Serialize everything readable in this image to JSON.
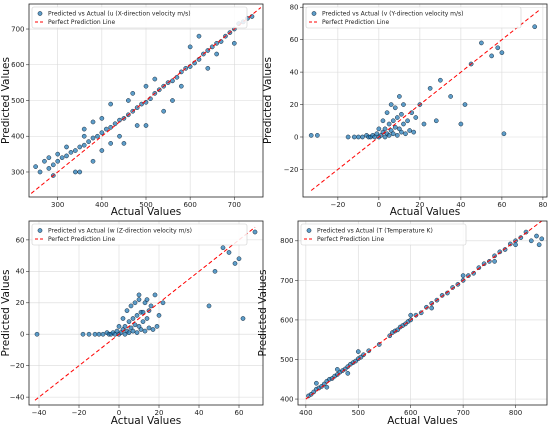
{
  "chart_data": [
    {
      "type": "scatter",
      "xlabel": "Actual Values",
      "ylabel": "Predicted Values",
      "xlim": [
        235,
        765
      ],
      "ylim": [
        230,
        770
      ],
      "xticks": [
        300,
        400,
        500,
        600,
        700
      ],
      "yticks": [
        300,
        400,
        500,
        600,
        700
      ],
      "grid": true,
      "legend_position": "top-left",
      "series": [
        {
          "name": "Predicted vs Actual (u (X-direction velocity m/s)",
          "color": "#1f77b4",
          "x": [
            280,
            290,
            300,
            310,
            320,
            330,
            340,
            350,
            360,
            370,
            380,
            390,
            400,
            410,
            420,
            430,
            440,
            450,
            460,
            470,
            480,
            490,
            500,
            510,
            520,
            530,
            540,
            550,
            560,
            570,
            580,
            590,
            600,
            610,
            620,
            630,
            640,
            650,
            660,
            670,
            680,
            690,
            700,
            710,
            720,
            730,
            740,
            250,
            260,
            270,
            280,
            290,
            350,
            360,
            380,
            400,
            420,
            450,
            470,
            500,
            520,
            560,
            600,
            640,
            700,
            300,
            320,
            340,
            360,
            380,
            400,
            420,
            440,
            460,
            480,
            500,
            540,
            580,
            620,
            660
          ],
          "y": [
            310,
            320,
            330,
            340,
            345,
            355,
            360,
            370,
            375,
            385,
            395,
            400,
            410,
            420,
            425,
            435,
            445,
            450,
            460,
            470,
            480,
            490,
            495,
            505,
            520,
            530,
            540,
            550,
            555,
            565,
            580,
            590,
            595,
            605,
            615,
            630,
            640,
            650,
            660,
            665,
            680,
            690,
            700,
            715,
            720,
            730,
            735,
            315,
            300,
            330,
            340,
            290,
            300,
            420,
            330,
            360,
            490,
            380,
            520,
            430,
            560,
            500,
            650,
            590,
            660,
            350,
            370,
            300,
            400,
            440,
            450,
            380,
            400,
            500,
            430,
            540,
            470,
            540,
            680,
            630
          ]
        }
      ],
      "reference_line": {
        "name": "Perfect Prediction Line",
        "color": "#ff0000",
        "from": [
          240,
          240
        ],
        "to": [
          760,
          760
        ]
      }
    },
    {
      "type": "scatter",
      "xlabel": "Actual Values",
      "ylabel": "Predicted Values",
      "xlim": [
        -37,
        82
      ],
      "ylim": [
        -37,
        82
      ],
      "xticks": [
        -20,
        0,
        20,
        40,
        60,
        80
      ],
      "yticks": [
        -20,
        0,
        20,
        40,
        60,
        80
      ],
      "grid": true,
      "legend_position": "top-left",
      "series": [
        {
          "name": "Predicted vs Actual (v (Y-direction velocity m/s)",
          "color": "#1f77b4",
          "x": [
            -33,
            -30,
            -15,
            -12,
            -10,
            -8,
            -6,
            -5,
            -4,
            -3,
            -2,
            -1,
            0,
            1,
            2,
            3,
            4,
            5,
            6,
            7,
            8,
            9,
            10,
            11,
            12,
            14,
            16,
            18,
            20,
            22,
            25,
            28,
            30,
            0,
            2,
            4,
            6,
            8,
            10,
            12,
            3,
            5,
            7,
            9,
            11,
            13,
            15,
            17,
            35,
            40,
            42,
            45,
            50,
            55,
            58,
            60,
            61,
            76
          ],
          "y": [
            1,
            1,
            0,
            0,
            0,
            0,
            1,
            0,
            0,
            1,
            0,
            2,
            0,
            1,
            3,
            5,
            2,
            8,
            4,
            10,
            6,
            12,
            5,
            14,
            8,
            10,
            15,
            12,
            20,
            8,
            30,
            10,
            35,
            5,
            10,
            15,
            20,
            18,
            25,
            20,
            0,
            1,
            2,
            1,
            3,
            2,
            4,
            3,
            25,
            8,
            20,
            45,
            58,
            50,
            55,
            52,
            2,
            68
          ]
        }
      ],
      "reference_line": {
        "name": "Perfect Prediction Line",
        "color": "#ff0000",
        "from": [
          -33,
          -33
        ],
        "to": [
          78,
          78
        ]
      }
    },
    {
      "type": "scatter",
      "xlabel": "Actual Values",
      "ylabel": "Predicted Values",
      "xlim": [
        -45,
        72
      ],
      "ylim": [
        -45,
        72
      ],
      "xticks": [
        -40,
        -20,
        0,
        20,
        40,
        60
      ],
      "yticks": [
        -40,
        -20,
        0,
        20,
        40,
        60
      ],
      "grid": true,
      "legend_position": "top-left",
      "series": [
        {
          "name": "Predicted vs Actual (w (Z-direction velocity m/s)",
          "color": "#1f77b4",
          "x": [
            -41,
            -18,
            -15,
            -12,
            -10,
            -8,
            -6,
            -5,
            -4,
            -3,
            -2,
            -1,
            0,
            1,
            2,
            3,
            4,
            5,
            6,
            7,
            8,
            9,
            10,
            11,
            12,
            13,
            14,
            15,
            16,
            18,
            20,
            22,
            0,
            2,
            4,
            6,
            8,
            10,
            12,
            3,
            5,
            7,
            9,
            11,
            13,
            15,
            17,
            19,
            10,
            14,
            45,
            48,
            52,
            55,
            58,
            60,
            62,
            68
          ],
          "y": [
            0,
            0,
            0,
            0,
            0,
            0,
            1,
            0,
            0,
            1,
            0,
            2,
            0,
            1,
            3,
            5,
            2,
            8,
            4,
            10,
            6,
            12,
            5,
            14,
            8,
            20,
            10,
            15,
            18,
            25,
            12,
            20,
            5,
            10,
            15,
            18,
            20,
            22,
            14,
            0,
            1,
            2,
            1,
            3,
            2,
            4,
            3,
            5,
            25,
            22,
            18,
            40,
            55,
            52,
            45,
            48,
            10,
            65
          ]
        }
      ],
      "reference_line": {
        "name": "Perfect Prediction Line",
        "color": "#ff0000",
        "from": [
          -42,
          -42
        ],
        "to": [
          68,
          68
        ]
      }
    },
    {
      "type": "scatter",
      "xlabel": "Actual Values",
      "ylabel": "Predicted Values",
      "xlim": [
        385,
        860
      ],
      "ylim": [
        385,
        850
      ],
      "xticks": [
        400,
        500,
        600,
        700,
        800
      ],
      "yticks": [
        400,
        500,
        600,
        700,
        800
      ],
      "grid": true,
      "legend_position": "top-left",
      "series": [
        {
          "name": "Predicted vs Actual (T (Temperature K)",
          "color": "#1f77b4",
          "x": [
            405,
            410,
            415,
            420,
            425,
            430,
            435,
            440,
            445,
            450,
            455,
            460,
            465,
            470,
            475,
            480,
            485,
            490,
            495,
            500,
            505,
            510,
            520,
            540,
            560,
            565,
            570,
            575,
            580,
            585,
            590,
            595,
            600,
            610,
            620,
            630,
            640,
            650,
            660,
            670,
            680,
            690,
            700,
            710,
            720,
            730,
            740,
            750,
            760,
            770,
            780,
            790,
            800,
            810,
            820,
            830,
            840,
            845,
            850,
            420,
            440,
            460,
            480,
            500,
            600,
            640,
            700,
            760,
            800
          ],
          "y": [
            408,
            412,
            418,
            425,
            428,
            432,
            438,
            445,
            450,
            452,
            458,
            462,
            468,
            472,
            476,
            482,
            488,
            492,
            496,
            502,
            506,
            512,
            522,
            538,
            560,
            568,
            572,
            575,
            582,
            586,
            590,
            596,
            600,
            612,
            618,
            632,
            642,
            650,
            662,
            668,
            682,
            690,
            700,
            712,
            718,
            732,
            742,
            748,
            762,
            772,
            778,
            792,
            800,
            808,
            822,
            800,
            812,
            790,
            805,
            440,
            430,
            475,
            465,
            520,
            612,
            630,
            712,
            748,
            790
          ]
        }
      ],
      "reference_line": {
        "name": "Perfect Prediction Line",
        "color": "#ff0000",
        "from": [
          400,
          400
        ],
        "to": [
          850,
          850
        ]
      }
    }
  ]
}
